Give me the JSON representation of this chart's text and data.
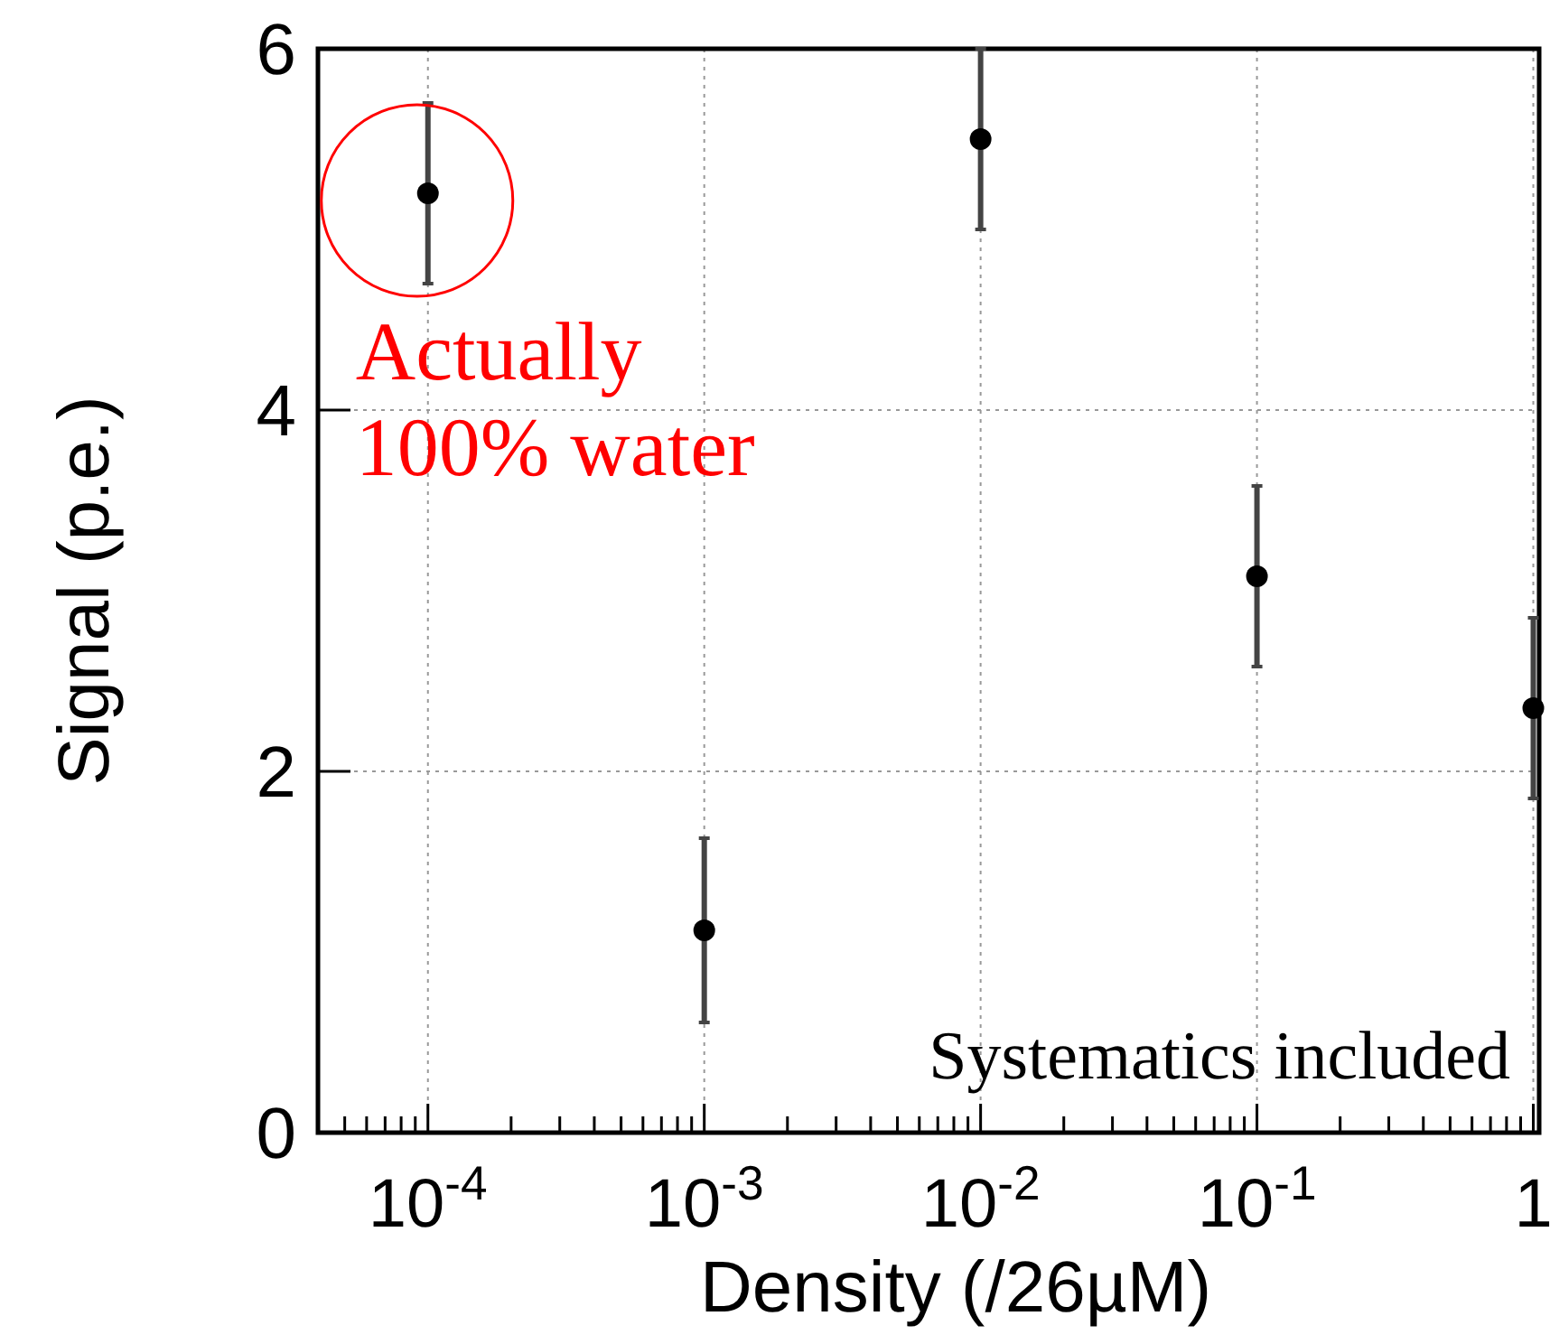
{
  "chart_data": {
    "type": "scatter",
    "xlabel": "Density (/26µM)",
    "ylabel": "Signal (p.e.)",
    "x": [
      0.0001,
      0.001,
      0.01,
      0.1,
      1
    ],
    "values": [
      5.2,
      1.12,
      5.5,
      3.08,
      2.35
    ],
    "errors": [
      0.5,
      0.51,
      0.5,
      0.5,
      0.5
    ],
    "color": "#000000",
    "marker": "circle",
    "log": "x",
    "grid": true,
    "xlim": [
      4e-05,
      1.05
    ],
    "xticks": [
      {
        "value": 4e-05,
        "label": null
      },
      {
        "value": 5e-05,
        "label": null
      },
      {
        "value": 6e-05,
        "label": null
      },
      {
        "value": 7e-05,
        "label": null
      },
      {
        "value": 8e-05,
        "label": null
      },
      {
        "value": 9e-05,
        "label": null
      },
      {
        "value": 0.0001,
        "label": "10$^{-4}$"
      },
      {
        "value": 0.0002,
        "label": null
      },
      {
        "value": 0.0003,
        "label": null
      },
      {
        "value": 0.0004,
        "label": null
      },
      {
        "value": 0.0005,
        "label": null
      },
      {
        "value": 0.0006,
        "label": null
      },
      {
        "value": 0.0007,
        "label": null
      },
      {
        "value": 0.0008,
        "label": null
      },
      {
        "value": 0.0009,
        "label": null
      },
      {
        "value": 0.001,
        "label": "10$^{-3}$"
      },
      {
        "value": 0.002,
        "label": null
      },
      {
        "value": 0.003,
        "label": null
      },
      {
        "value": 0.004,
        "label": null
      },
      {
        "value": 0.005,
        "label": null
      },
      {
        "value": 0.006,
        "label": null
      },
      {
        "value": 0.007,
        "label": null
      },
      {
        "value": 0.008,
        "label": null
      },
      {
        "value": 0.009,
        "label": null
      },
      {
        "value": 0.01,
        "label": "10$^{-2}$"
      },
      {
        "value": 0.02,
        "label": null
      },
      {
        "value": 0.03,
        "label": null
      },
      {
        "value": 0.04,
        "label": null
      },
      {
        "value": 0.05,
        "label": null
      },
      {
        "value": 0.06,
        "label": null
      },
      {
        "value": 0.07,
        "label": null
      },
      {
        "value": 0.08,
        "label": null
      },
      {
        "value": 0.09,
        "label": null
      },
      {
        "value": 0.1,
        "label": "10$^{-1}$"
      },
      {
        "value": 0.2,
        "label": null
      },
      {
        "value": 0.3,
        "label": null
      },
      {
        "value": 0.4,
        "label": null
      },
      {
        "value": 0.5,
        "label": null
      },
      {
        "value": 0.6,
        "label": null
      },
      {
        "value": 0.7,
        "label": null
      },
      {
        "value": 0.8,
        "label": null
      },
      {
        "value": 0.9,
        "label": null
      },
      {
        "value": 1,
        "label": "1"
      }
    ],
    "ylim": [
      0,
      6
    ],
    "yticks": [
      0,
      2,
      4,
      6
    ],
    "annotations": [
      {
        "text": "Actually\n100% water",
        "x": 0.0001,
        "y": 5.2
      },
      "Systematics included"
    ]
  }
}
